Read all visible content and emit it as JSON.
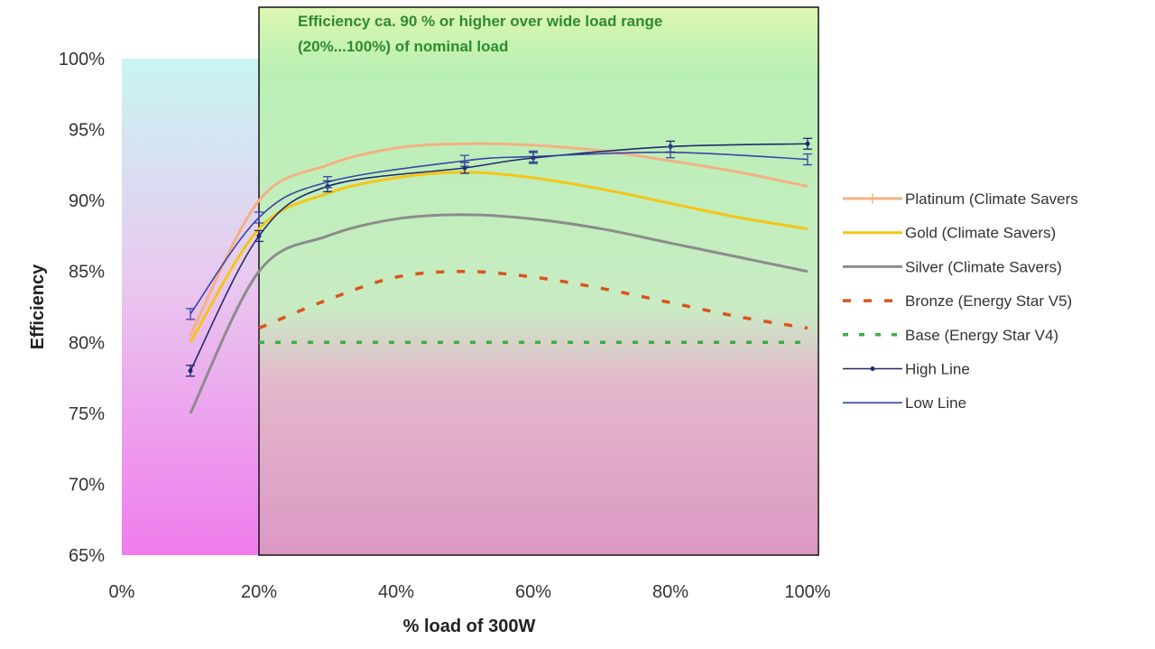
{
  "chart_data": {
    "type": "line",
    "xlabel": "% load of 300W",
    "ylabel": "Efficiency",
    "xlim": [
      0,
      100
    ],
    "ylim": [
      65,
      100
    ],
    "x_ticks": [
      "0%",
      "20%",
      "40%",
      "60%",
      "80%",
      "100%"
    ],
    "y_ticks": [
      "65%",
      "70%",
      "75%",
      "80%",
      "85%",
      "90%",
      "95%",
      "100%"
    ],
    "annotation": [
      "Efficiency ca. 90 % or higher over wide load range",
      "(20%...100%) of nominal load"
    ],
    "highlight_region": [
      20,
      100
    ],
    "legend_position": "right",
    "grid": false,
    "series": [
      {
        "name": "Platinum (Climate Savers",
        "color": "#f4b183",
        "style": "solid",
        "x": [
          10,
          20,
          30,
          40,
          50,
          60,
          70,
          80,
          90,
          100
        ],
        "y": [
          80.5,
          90,
          92.5,
          93.7,
          94,
          93.9,
          93.5,
          92.8,
          92,
          91
        ]
      },
      {
        "name": "Gold (Climate Savers)",
        "color": "#f5c518",
        "style": "solid",
        "x": [
          10,
          20,
          30,
          40,
          50,
          60,
          70,
          80,
          90,
          100
        ],
        "y": [
          80,
          88,
          90.5,
          91.6,
          92,
          91.6,
          90.8,
          89.8,
          88.8,
          88
        ]
      },
      {
        "name": "Silver (Climate Savers)",
        "color": "#8c8c8c",
        "style": "solid",
        "x": [
          10,
          20,
          30,
          40,
          50,
          60,
          70,
          80,
          90,
          100
        ],
        "y": [
          75,
          85,
          87.5,
          88.7,
          89,
          88.7,
          88,
          87,
          86,
          85
        ]
      },
      {
        "name": "Bronze (Energy Star V5)",
        "color": "#d9541e",
        "style": "dashed",
        "x": [
          20,
          30,
          40,
          50,
          60,
          70,
          80,
          90,
          100
        ],
        "y": [
          81,
          83,
          84.6,
          85,
          84.6,
          83.8,
          82.8,
          81.8,
          81
        ]
      },
      {
        "name": "Base (Energy Star V4)",
        "color": "#3cb043",
        "style": "dashed",
        "x": [
          20,
          100
        ],
        "y": [
          80,
          80
        ]
      },
      {
        "name": "High Line",
        "color": "#1f2a6b",
        "style": "solid-markers",
        "x": [
          10,
          20,
          30,
          50,
          60,
          80,
          100
        ],
        "y": [
          78,
          87.5,
          91,
          92.3,
          93,
          93.8,
          94
        ]
      },
      {
        "name": "Low Line",
        "color": "#3b45a8",
        "style": "solid",
        "x": [
          10,
          20,
          30,
          50,
          60,
          80,
          100
        ],
        "y": [
          82,
          88.8,
          91.3,
          92.8,
          93.1,
          93.4,
          92.9
        ]
      }
    ]
  }
}
